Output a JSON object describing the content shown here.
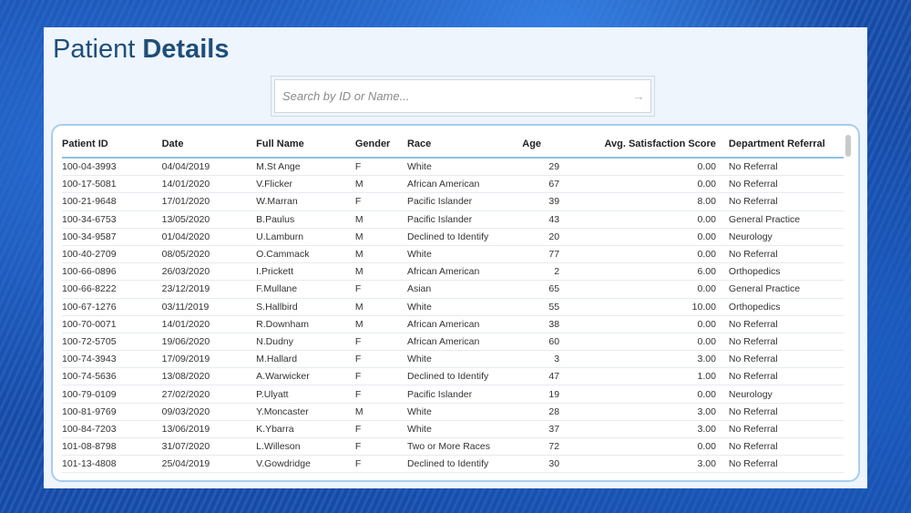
{
  "title": {
    "light": "Patient",
    "bold": "Details"
  },
  "search": {
    "placeholder": "Search by ID or Name...",
    "arrow": "→"
  },
  "table": {
    "headers": [
      "Patient ID",
      "Date",
      "Full Name",
      "Gender",
      "Race",
      "Age",
      "Avg. Satisfaction Score",
      "Department Referral"
    ],
    "rows": [
      [
        "100-04-3993",
        "04/04/2019",
        "M.St Ange",
        "F",
        "White",
        "29",
        "0.00",
        "No Referral"
      ],
      [
        "100-17-5081",
        "14/01/2020",
        "V.Flicker",
        "M",
        "African American",
        "67",
        "0.00",
        "No Referral"
      ],
      [
        "100-21-9648",
        "17/01/2020",
        "W.Marran",
        "F",
        "Pacific Islander",
        "39",
        "8.00",
        "No Referral"
      ],
      [
        "100-34-6753",
        "13/05/2020",
        "B.Paulus",
        "M",
        "Pacific Islander",
        "43",
        "0.00",
        "General Practice"
      ],
      [
        "100-34-9587",
        "01/04/2020",
        "U.Lamburn",
        "M",
        "Declined to Identify",
        "20",
        "0.00",
        "Neurology"
      ],
      [
        "100-40-2709",
        "08/05/2020",
        "O.Cammack",
        "M",
        "White",
        "77",
        "0.00",
        "No Referral"
      ],
      [
        "100-66-0896",
        "26/03/2020",
        "I.Prickett",
        "M",
        "African American",
        "2",
        "6.00",
        "Orthopedics"
      ],
      [
        "100-66-8222",
        "23/12/2019",
        "F.Mullane",
        "F",
        "Asian",
        "65",
        "0.00",
        "General Practice"
      ],
      [
        "100-67-1276",
        "03/11/2019",
        "S.Hallbird",
        "M",
        "White",
        "55",
        "10.00",
        "Orthopedics"
      ],
      [
        "100-70-0071",
        "14/01/2020",
        "R.Downham",
        "M",
        "African American",
        "38",
        "0.00",
        "No Referral"
      ],
      [
        "100-72-5705",
        "19/06/2020",
        "N.Dudny",
        "F",
        "African American",
        "60",
        "0.00",
        "No Referral"
      ],
      [
        "100-74-3943",
        "17/09/2019",
        "M.Hallard",
        "F",
        "White",
        "3",
        "3.00",
        "No Referral"
      ],
      [
        "100-74-5636",
        "13/08/2020",
        "A.Warwicker",
        "F",
        "Declined to Identify",
        "47",
        "1.00",
        "No Referral"
      ],
      [
        "100-79-0109",
        "27/02/2020",
        "P.Ulyatt",
        "F",
        "Pacific Islander",
        "19",
        "0.00",
        "Neurology"
      ],
      [
        "100-81-9769",
        "09/03/2020",
        "Y.Moncaster",
        "M",
        "White",
        "28",
        "3.00",
        "No Referral"
      ],
      [
        "100-84-7203",
        "13/06/2019",
        "K.Ybarra",
        "F",
        "White",
        "37",
        "3.00",
        "No Referral"
      ],
      [
        "101-08-8798",
        "31/07/2020",
        "L.Willeson",
        "F",
        "Two or More Races",
        "72",
        "0.00",
        "No Referral"
      ],
      [
        "101-13-4808",
        "25/04/2019",
        "V.Gowdridge",
        "F",
        "Declined to Identify",
        "30",
        "3.00",
        "No Referral"
      ]
    ]
  }
}
